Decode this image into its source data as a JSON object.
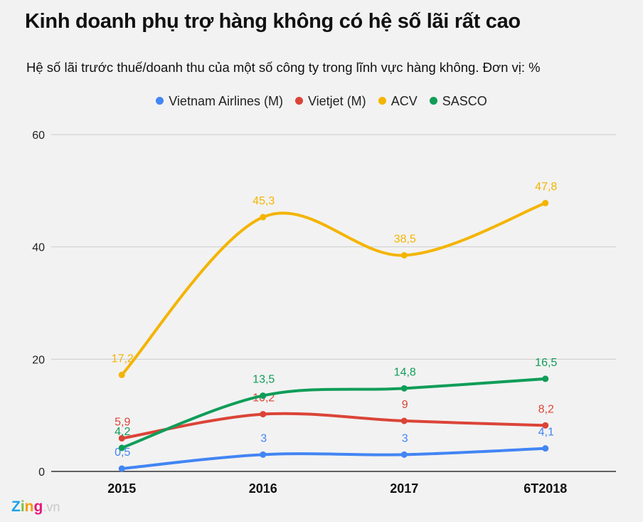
{
  "title": "Kinh doanh phụ trợ hàng không có hệ số lãi rất cao",
  "subtitle": "Hệ số lãi trước thuế/doanh thu của một số công ty trong lĩnh vực hàng không. Đơn vị: %",
  "logo": {
    "brand": "Zing",
    "suffix": ".vn"
  },
  "chart_data": {
    "type": "line",
    "curve": "smooth",
    "categories": [
      "2015",
      "2016",
      "2017",
      "6T2018"
    ],
    "ylim": [
      0,
      60
    ],
    "yticks": [
      0,
      20,
      40,
      60
    ],
    "grid": true,
    "legend": "top",
    "series": [
      {
        "name": "Vietnam Airlines (M)",
        "color": "#4285f4",
        "values": [
          0.5,
          3,
          3,
          4.1
        ],
        "labels": [
          "0,5",
          "3",
          "3",
          "4,1"
        ]
      },
      {
        "name": "Vietjet (M)",
        "color": "#db4437",
        "values": [
          5.9,
          10.2,
          9,
          8.2
        ],
        "labels": [
          "5,9",
          "10,2",
          "9",
          "8,2"
        ]
      },
      {
        "name": "ACV",
        "color": "#f4b400",
        "values": [
          17.2,
          45.3,
          38.5,
          47.8
        ],
        "labels": [
          "17,2",
          "45,3",
          "38,5",
          "47,8"
        ]
      },
      {
        "name": "SASCO",
        "color": "#0f9d58",
        "values": [
          4.2,
          13.5,
          14.8,
          16.5
        ],
        "labels": [
          "4,2",
          "13,5",
          "14,8",
          "16,5"
        ]
      }
    ]
  }
}
